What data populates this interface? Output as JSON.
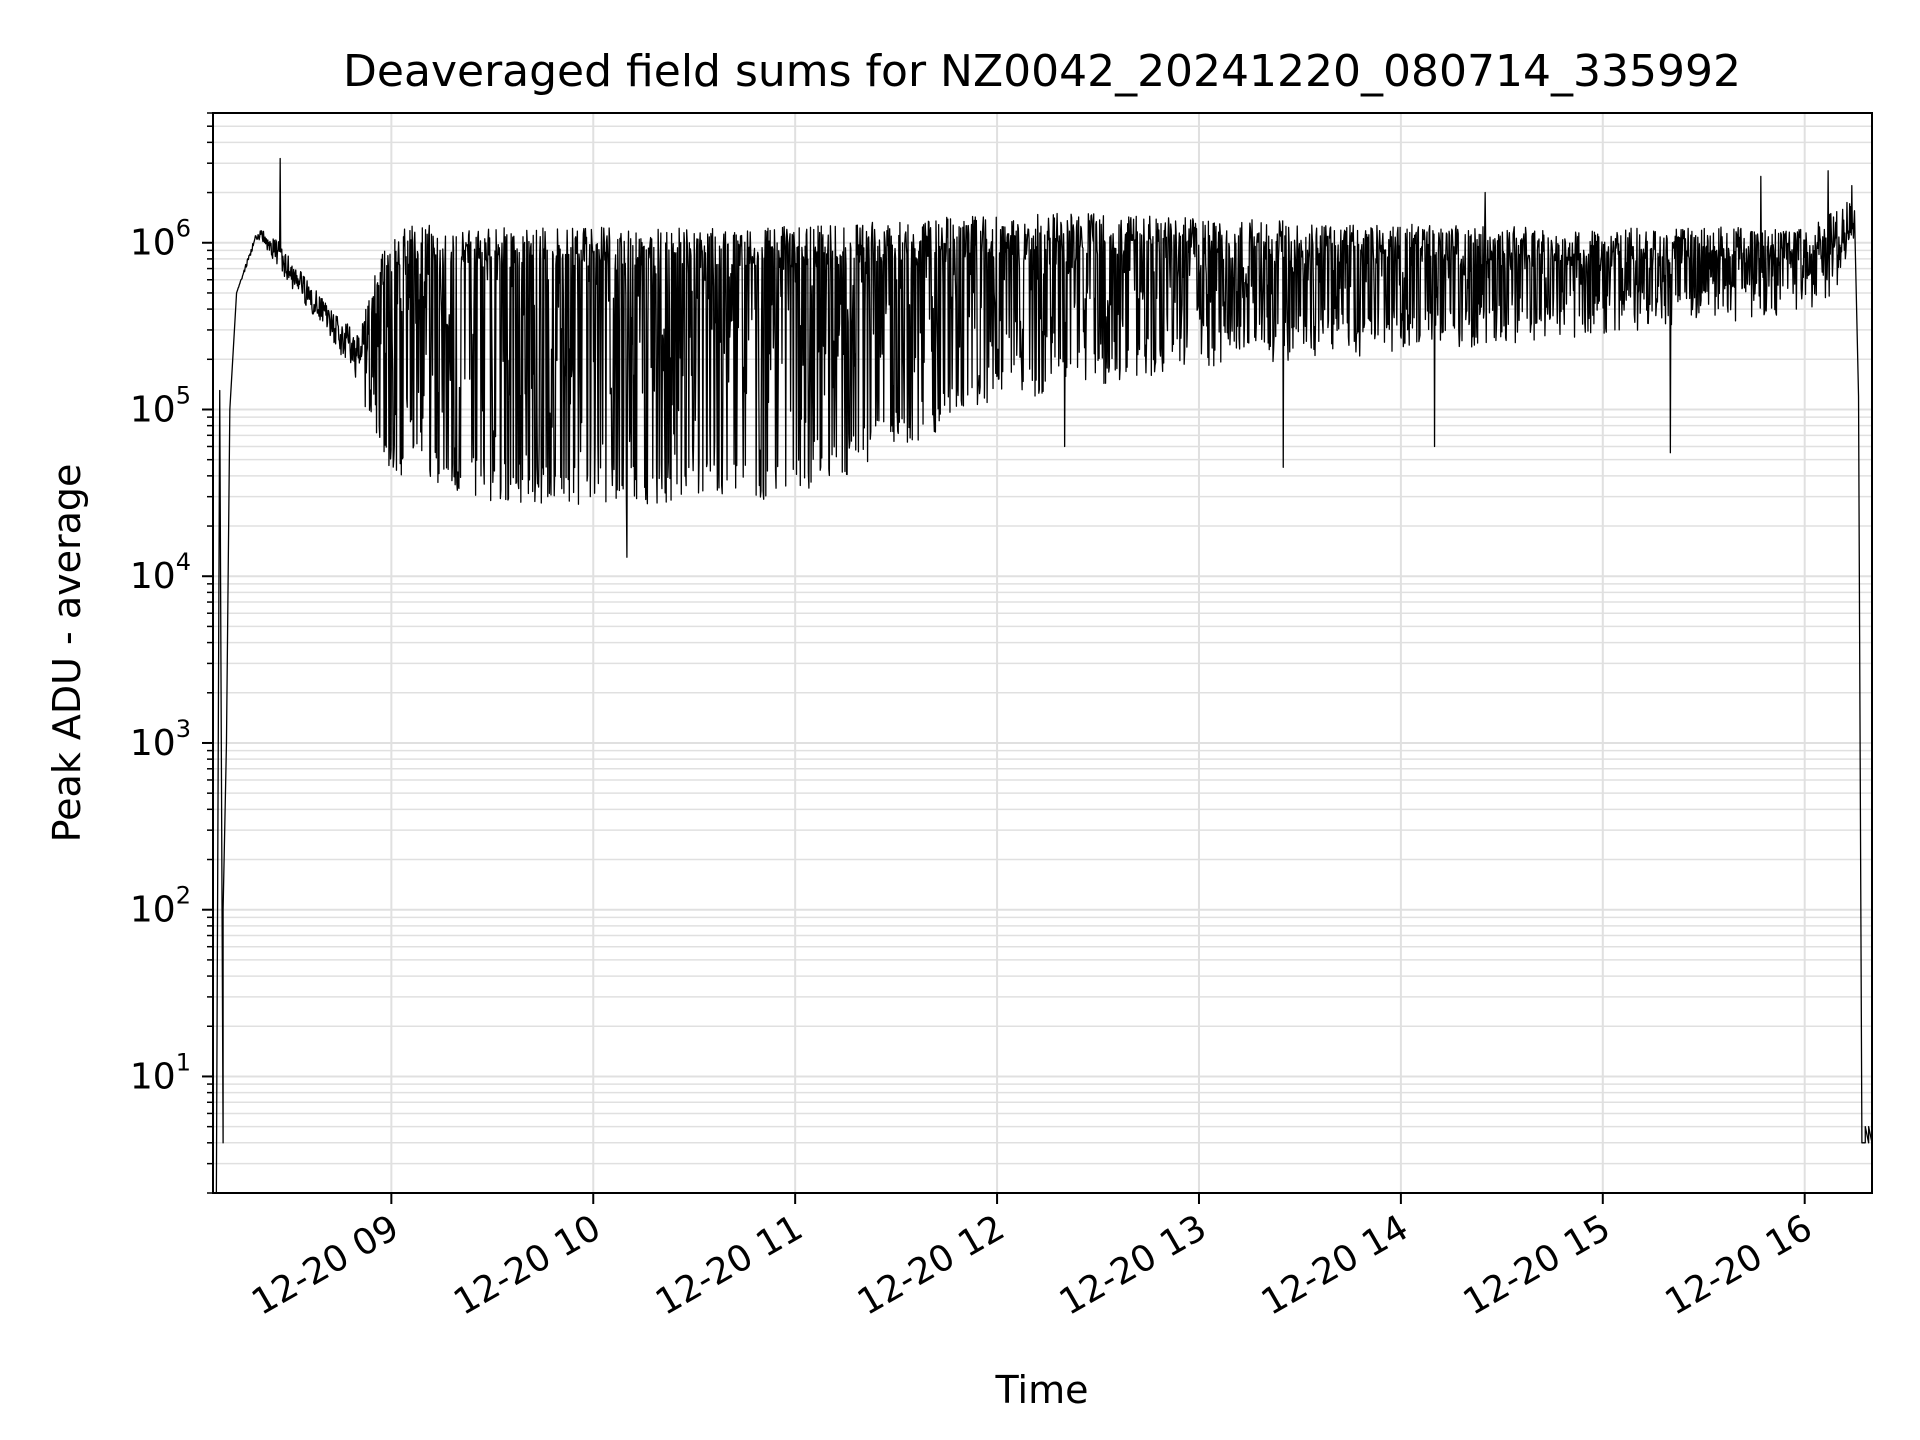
{
  "chart_data": {
    "type": "line",
    "title": "Deaveraged field sums for NZ0042_20241220_080714_335992",
    "xlabel": "Time",
    "ylabel": "Peak ADU - average",
    "yscale": "log",
    "xlim": [
      "2024-12-20 08:07",
      "2024-12-20 16:20"
    ],
    "ylim": [
      2,
      6000000
    ],
    "grid": true,
    "line_color": "#000000",
    "grid_color": "#e0e0e0",
    "x_ticks": [
      {
        "value": "2024-12-20 09:00",
        "label": "12-20 09"
      },
      {
        "value": "2024-12-20 10:00",
        "label": "12-20 10"
      },
      {
        "value": "2024-12-20 11:00",
        "label": "12-20 11"
      },
      {
        "value": "2024-12-20 12:00",
        "label": "12-20 12"
      },
      {
        "value": "2024-12-20 13:00",
        "label": "12-20 13"
      },
      {
        "value": "2024-12-20 14:00",
        "label": "12-20 14"
      },
      {
        "value": "2024-12-20 15:00",
        "label": "12-20 15"
      },
      {
        "value": "2024-12-20 16:00",
        "label": "12-20 16"
      }
    ],
    "y_ticks": [
      {
        "value": 10,
        "base": "10",
        "exp": "1"
      },
      {
        "value": 100,
        "base": "10",
        "exp": "2"
      },
      {
        "value": 1000,
        "base": "10",
        "exp": "3"
      },
      {
        "value": 10000,
        "base": "10",
        "exp": "4"
      },
      {
        "value": 100000,
        "base": "10",
        "exp": "5"
      },
      {
        "value": 1000000,
        "base": "10",
        "exp": "6"
      }
    ],
    "series": [
      {
        "upper_envelope": {
          "x": [
            "2024-12-20 08:14",
            "2024-12-20 08:20",
            "2024-12-20 08:25",
            "2024-12-20 08:30",
            "2024-12-20 08:35",
            "2024-12-20 08:40",
            "2024-12-20 08:45",
            "2024-12-20 08:50",
            "2024-12-20 09:00",
            "2024-12-20 09:30",
            "2024-12-20 10:00",
            "2024-12-20 10:30",
            "2024-12-20 11:00",
            "2024-12-20 11:30",
            "2024-12-20 12:00",
            "2024-12-20 12:30",
            "2024-12-20 13:00",
            "2024-12-20 13:30",
            "2024-12-20 14:00",
            "2024-12-20 14:30",
            "2024-12-20 15:00",
            "2024-12-20 15:30",
            "2024-12-20 16:00",
            "2024-12-20 16:10",
            "2024-12-20 16:15",
            "2024-12-20 16:16"
          ],
          "y": [
            500000,
            1200000,
            1150000,
            800000,
            600000,
            450000,
            350000,
            300000,
            1300000,
            1250000,
            1250000,
            1250000,
            1250000,
            1350000,
            1500000,
            1500000,
            1400000,
            1350000,
            1300000,
            1250000,
            1250000,
            1250000,
            1200000,
            1600000,
            1900000,
            120000
          ]
        },
        "lower_envelope": {
          "x": [
            "2024-12-20 08:14",
            "2024-12-20 08:20",
            "2024-12-20 08:30",
            "2024-12-20 08:40",
            "2024-12-20 08:50",
            "2024-12-20 09:00",
            "2024-12-20 09:30",
            "2024-12-20 10:00",
            "2024-12-20 10:30",
            "2024-12-20 11:00",
            "2024-12-20 11:30",
            "2024-12-20 12:00",
            "2024-12-20 12:30",
            "2024-12-20 13:00",
            "2024-12-20 13:30",
            "2024-12-20 14:00",
            "2024-12-20 14:30",
            "2024-12-20 15:00",
            "2024-12-20 15:30",
            "2024-12-20 16:00",
            "2024-12-20 16:10",
            "2024-12-20 16:15"
          ],
          "y": [
            500000,
            1000000,
            500000,
            280000,
            120000,
            40000,
            28000,
            26000,
            28000,
            28000,
            55000,
            110000,
            140000,
            180000,
            190000,
            220000,
            240000,
            280000,
            320000,
            380000,
            500000,
            900000
          ]
        },
        "dips": [
          {
            "x": "2024-12-20 10:10",
            "y": 13000
          },
          {
            "x": "2024-12-20 12:20",
            "y": 60000
          },
          {
            "x": "2024-12-20 13:25",
            "y": 45000
          },
          {
            "x": "2024-12-20 14:10",
            "y": 60000
          },
          {
            "x": "2024-12-20 15:20",
            "y": 55000
          }
        ],
        "spikes": [
          {
            "x": "2024-12-20 08:27",
            "y": 3200000
          },
          {
            "x": "2024-12-20 14:25",
            "y": 2000000
          },
          {
            "x": "2024-12-20 15:47",
            "y": 2500000
          },
          {
            "x": "2024-12-20 16:07",
            "y": 2700000
          },
          {
            "x": "2024-12-20 16:14",
            "y": 2200000
          }
        ],
        "start_segment": {
          "x": [
            "2024-12-20 08:08",
            "2024-12-20 08:09",
            "2024-12-20 08:10",
            "2024-12-20 08:10",
            "2024-12-20 08:11",
            "2024-12-20 08:12",
            "2024-12-20 08:14"
          ],
          "y": [
            2,
            130000,
            4,
            100,
            1000,
            100000,
            500000
          ]
        },
        "end_segment": {
          "x": [
            "2024-12-20 16:16",
            "2024-12-20 16:17",
            "2024-12-20 16:18",
            "2024-12-20 16:18",
            "2024-12-20 16:19",
            "2024-12-20 16:19",
            "2024-12-20 16:20"
          ],
          "y": [
            120000,
            4,
            4,
            5,
            4,
            5,
            4
          ]
        }
      }
    ]
  }
}
